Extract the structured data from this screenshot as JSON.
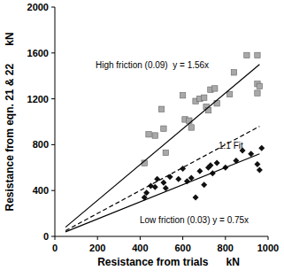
{
  "chart_data": {
    "type": "scatter",
    "x_label": "Resistance from trials      kN",
    "y_label": "Resistance from eqn. 21 & 22      kN",
    "xlim": [
      0,
      1000
    ],
    "xticks": [
      0,
      200,
      400,
      600,
      800,
      1000
    ],
    "ylim": [
      0,
      2000
    ],
    "yticks": [
      0,
      400,
      800,
      1200,
      1600,
      2000
    ],
    "grid": false,
    "annotations": [
      "High friction (0.09)  y = 1.56x",
      "1:1 Fit",
      "Low friction (0.03) y = 0.75x"
    ],
    "series": [
      {
        "type": "scatter",
        "marker": "square",
        "color": "#a8a8a8",
        "x": [
          420,
          440,
          470,
          500,
          510,
          520,
          600,
          610,
          630,
          640,
          660,
          680,
          700,
          710,
          720,
          730,
          750,
          760,
          820,
          840,
          900,
          950,
          950,
          960,
          950
        ],
        "values": [
          640,
          890,
          880,
          1110,
          940,
          730,
          1230,
          1020,
          1010,
          950,
          1180,
          1200,
          1210,
          1130,
          1100,
          1280,
          1290,
          1160,
          1240,
          1430,
          1580,
          1580,
          1330,
          1310,
          1250
        ]
      },
      {
        "type": "scatter",
        "marker": "diamond",
        "color": "#111111",
        "x": [
          420,
          430,
          450,
          470,
          480,
          510,
          520,
          540,
          580,
          600,
          620,
          640,
          660,
          680,
          700,
          720,
          730,
          740,
          760,
          800,
          850,
          880,
          920,
          950,
          960,
          970
        ],
        "values": [
          340,
          380,
          440,
          430,
          500,
          470,
          420,
          520,
          500,
          590,
          480,
          510,
          340,
          570,
          450,
          600,
          620,
          550,
          640,
          600,
          660,
          750,
          720,
          630,
          580,
          770
        ]
      },
      {
        "type": "line",
        "line_style": "solid",
        "color": "#000000",
        "x": [
          50,
          960
        ],
        "values": [
          80,
          1500
        ]
      },
      {
        "type": "line",
        "line_style": "dashed",
        "color": "#000000",
        "x": [
          50,
          960
        ],
        "values": [
          50,
          960
        ]
      },
      {
        "type": "line",
        "line_style": "solid",
        "color": "#000000",
        "x": [
          50,
          960
        ],
        "values": [
          40,
          720
        ]
      }
    ]
  }
}
